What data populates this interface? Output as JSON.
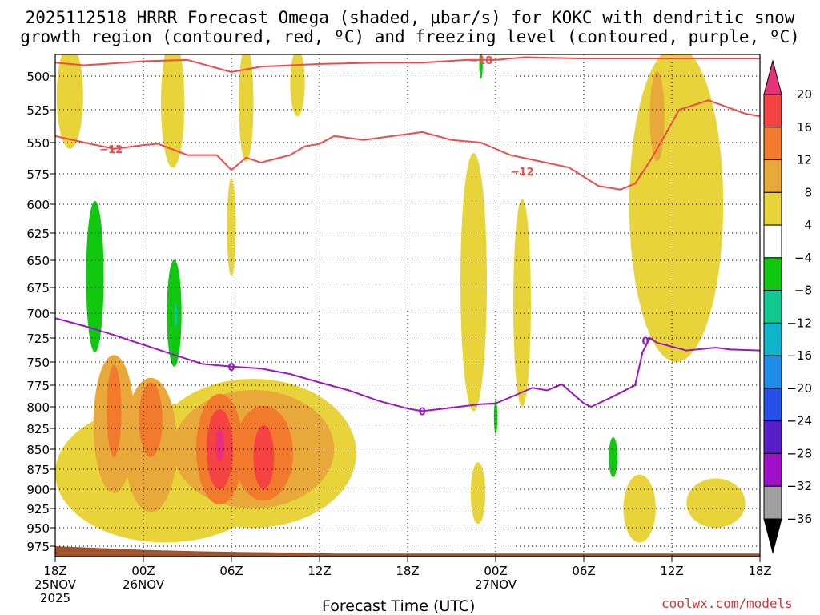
{
  "chart_data": {
    "type": "heatmap",
    "title_line1": "2025112518 HRRR Forecast Omega (shaded, μbar/s) for KOKC with dendritic snow",
    "title_line2": "growth region (contoured, red, ºC) and freezing level (contoured, purple, ºC)",
    "xlabel": "Forecast Time (UTC)",
    "credit": "coolwx.com/models",
    "x_ticks": [
      {
        "hour": 0,
        "label": "18Z",
        "sub": "25NOV",
        "sub2": "2025"
      },
      {
        "hour": 6,
        "label": "00Z",
        "sub": "26NOV",
        "sub2": ""
      },
      {
        "hour": 12,
        "label": "06Z",
        "sub": "",
        "sub2": ""
      },
      {
        "hour": 18,
        "label": "12Z",
        "sub": "",
        "sub2": ""
      },
      {
        "hour": 24,
        "label": "18Z",
        "sub": "",
        "sub2": ""
      },
      {
        "hour": 30,
        "label": "00Z",
        "sub": "27NOV",
        "sub2": ""
      },
      {
        "hour": 36,
        "label": "06Z",
        "sub": "",
        "sub2": ""
      },
      {
        "hour": 42,
        "label": "12Z",
        "sub": "",
        "sub2": ""
      },
      {
        "hour": 48,
        "label": "18Z",
        "sub": "",
        "sub2": ""
      }
    ],
    "x_range_hours": [
      0,
      48
    ],
    "y_levels": [
      500,
      525,
      550,
      575,
      600,
      625,
      650,
      675,
      700,
      725,
      750,
      775,
      800,
      825,
      850,
      875,
      900,
      925,
      950,
      975
    ],
    "colorbar": {
      "labels": [
        "20",
        "16",
        "12",
        "8",
        "4",
        "−4",
        "−8",
        "−12",
        "−16",
        "−20",
        "−24",
        "−28",
        "−32",
        "−36"
      ],
      "colors": [
        "#e8317a",
        "#f54242",
        "#f27a2c",
        "#e8a83a",
        "#e8d43a",
        "#ffffff",
        "#10c810",
        "#10c890",
        "#10b4c8",
        "#1e8ce8",
        "#2850e8",
        "#5a1ec8",
        "#a010c8",
        "#a0a0a0",
        "#000000"
      ]
    },
    "omega_regions": [
      {
        "value": 4,
        "hour": 1,
        "p": 515,
        "rx": 0.9,
        "rp": 40
      },
      {
        "value": 4,
        "hour": 8,
        "p": 520,
        "rx": 0.8,
        "rp": 50
      },
      {
        "value": 4,
        "hour": 13,
        "p": 520,
        "rx": 0.5,
        "rp": 45
      },
      {
        "value": 4,
        "hour": 12,
        "p": 620,
        "rx": 0.3,
        "rp": 45
      },
      {
        "value": 4,
        "hour": 16.5,
        "p": 505,
        "rx": 0.5,
        "rp": 25
      },
      {
        "value": 4,
        "hour": 28.5,
        "p": 670,
        "rx": 0.9,
        "rp": 135
      },
      {
        "value": 4,
        "hour": 31.8,
        "p": 690,
        "rx": 0.6,
        "rp": 110
      },
      {
        "value": 4,
        "hour": 28.8,
        "p": 905,
        "rx": 0.5,
        "rp": 40
      },
      {
        "value": 4,
        "hour": 42.3,
        "p": 600,
        "rx": 3.2,
        "rp": 150
      },
      {
        "value": 4,
        "hour": 7.5,
        "p": 880,
        "rx": 7.5,
        "rp": 90
      },
      {
        "value": 4,
        "hour": 13.5,
        "p": 855,
        "rx": 7.0,
        "rp": 95
      },
      {
        "value": 4,
        "hour": 39.8,
        "p": 925,
        "rx": 1.1,
        "rp": 45
      },
      {
        "value": 4,
        "hour": 45,
        "p": 918,
        "rx": 2.0,
        "rp": 32
      },
      {
        "value": 8,
        "hour": 4.0,
        "p": 820,
        "rx": 1.4,
        "rp": 85
      },
      {
        "value": 8,
        "hour": 6.5,
        "p": 845,
        "rx": 1.8,
        "rp": 85
      },
      {
        "value": 8,
        "hour": 13.5,
        "p": 850,
        "rx": 5.5,
        "rp": 75
      },
      {
        "value": 8,
        "hour": 41.0,
        "p": 530,
        "rx": 0.5,
        "rp": 35
      },
      {
        "value": 12,
        "hour": 4.0,
        "p": 805,
        "rx": 0.5,
        "rp": 55
      },
      {
        "value": 12,
        "hour": 6.5,
        "p": 815,
        "rx": 0.8,
        "rp": 45
      },
      {
        "value": 12,
        "hour": 11.2,
        "p": 850,
        "rx": 1.6,
        "rp": 70
      },
      {
        "value": 12,
        "hour": 14.2,
        "p": 855,
        "rx": 2.0,
        "rp": 60
      },
      {
        "value": 16,
        "hour": 11.2,
        "p": 850,
        "rx": 0.9,
        "rp": 50
      },
      {
        "value": 16,
        "hour": 14.2,
        "p": 860,
        "rx": 0.7,
        "rp": 40
      },
      {
        "value": 20,
        "hour": 11.2,
        "p": 845,
        "rx": 0.3,
        "rp": 20
      },
      {
        "value": -4,
        "hour": 2.7,
        "p": 665,
        "rx": 0.6,
        "rp": 75
      },
      {
        "value": -4,
        "hour": 8.1,
        "p": 700,
        "rx": 0.5,
        "rp": 55
      },
      {
        "value": -4,
        "hour": 38.0,
        "p": 860,
        "rx": 0.3,
        "rp": 25
      },
      {
        "value": -4,
        "hour": 30.0,
        "p": 812,
        "rx": 0.12,
        "rp": 20
      },
      {
        "value": -4,
        "hour": 29.0,
        "p": 492,
        "rx": 0.12,
        "rp": 10
      },
      {
        "value": -8,
        "hour": 8.2,
        "p": 702,
        "rx": 0.1,
        "rp": 12
      }
    ],
    "series": [
      {
        "name": "-18 ºC isotherm",
        "color": "#f24a4a",
        "label": "−18",
        "label_at": [
          29,
          488
        ],
        "points": [
          [
            0,
            490
          ],
          [
            2,
            492
          ],
          [
            6,
            489
          ],
          [
            9,
            488
          ],
          [
            12,
            497
          ],
          [
            14,
            493
          ],
          [
            18,
            491
          ],
          [
            22,
            490
          ],
          [
            25,
            490
          ],
          [
            28,
            488
          ],
          [
            30,
            488
          ],
          [
            32,
            486
          ],
          [
            36,
            487
          ],
          [
            40,
            487
          ],
          [
            48,
            487
          ]
        ]
      },
      {
        "name": "-12 ºC isotherm",
        "color": "#f24a4a",
        "label": "−12",
        "label_at": [
          3.8,
          555
        ],
        "label2": "−12",
        "label2_at": [
          31.8,
          573
        ],
        "points": [
          [
            0,
            545
          ],
          [
            2,
            550
          ],
          [
            4,
            555
          ],
          [
            6,
            552
          ],
          [
            7,
            551
          ],
          [
            9,
            560
          ],
          [
            11,
            560
          ],
          [
            12,
            572
          ],
          [
            13,
            562
          ],
          [
            14,
            566
          ],
          [
            16,
            560
          ],
          [
            17,
            553
          ],
          [
            18,
            551
          ],
          [
            19,
            545
          ],
          [
            21,
            548
          ],
          [
            23,
            545
          ],
          [
            25,
            542
          ],
          [
            27,
            548
          ],
          [
            29,
            550
          ],
          [
            31,
            560
          ],
          [
            33,
            565
          ],
          [
            35,
            570
          ],
          [
            37,
            585
          ],
          [
            38.5,
            588
          ],
          [
            39.5,
            583
          ],
          [
            40.5,
            565
          ],
          [
            41.5,
            545
          ],
          [
            42.5,
            525
          ],
          [
            44.5,
            518
          ],
          [
            47,
            528
          ],
          [
            48,
            530
          ]
        ]
      },
      {
        "name": "0 ºC freezing level",
        "color": "#9a16c0",
        "label": "0",
        "label_at": [
          12,
          755
        ],
        "label2": "0",
        "label2_at": [
          25,
          805
        ],
        "label3": "0",
        "label3_at": [
          40.2,
          728
        ],
        "points": [
          [
            0,
            705
          ],
          [
            2,
            713
          ],
          [
            4,
            722
          ],
          [
            6,
            732
          ],
          [
            8,
            742
          ],
          [
            10,
            752
          ],
          [
            12,
            755
          ],
          [
            14,
            757
          ],
          [
            16,
            763
          ],
          [
            18,
            772
          ],
          [
            20,
            781
          ],
          [
            22,
            793
          ],
          [
            24,
            802
          ],
          [
            25,
            805
          ],
          [
            26,
            803
          ],
          [
            28,
            799
          ],
          [
            29,
            797
          ],
          [
            30,
            796
          ],
          [
            31,
            789
          ],
          [
            32.5,
            778
          ],
          [
            33.5,
            781
          ],
          [
            34.5,
            774
          ],
          [
            36,
            796
          ],
          [
            36.5,
            800
          ],
          [
            38,
            788
          ],
          [
            39.5,
            775
          ],
          [
            40,
            740
          ],
          [
            40.5,
            725
          ],
          [
            41,
            730
          ],
          [
            43,
            738
          ],
          [
            45,
            735
          ],
          [
            46,
            737
          ],
          [
            48,
            738
          ]
        ]
      }
    ],
    "terrain": {
      "color": "#a0522d",
      "points": [
        [
          0,
          975
        ],
        [
          6,
          980
        ],
        [
          10,
          982
        ],
        [
          13,
          983
        ],
        [
          17,
          984
        ],
        [
          19,
          985
        ],
        [
          24,
          985
        ],
        [
          48,
          985
        ]
      ]
    }
  }
}
